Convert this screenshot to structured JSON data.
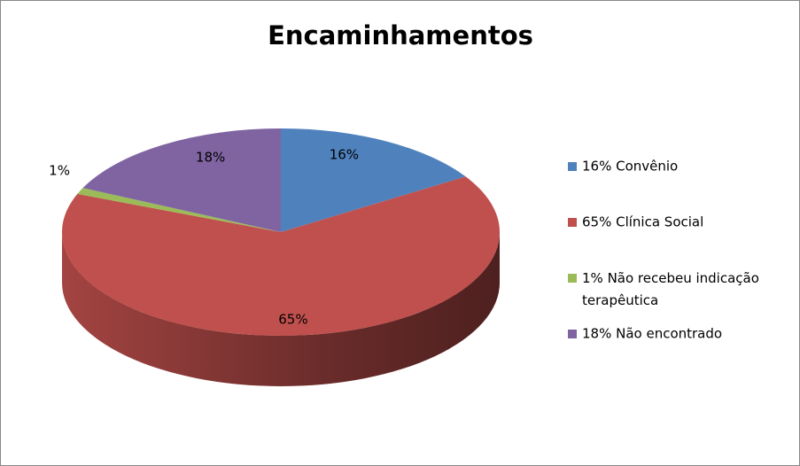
{
  "chart_data": {
    "type": "pie3d",
    "title": "Encaminhamentos",
    "categories": [
      "16% Convênio",
      "65% Clínica Social",
      "1% Não recebeu indicação terapêutica",
      "18% Não encontrado"
    ],
    "values": [
      16,
      65,
      1,
      18
    ],
    "value_labels": [
      "16%",
      "65%",
      "1%",
      "18%"
    ],
    "colors": [
      "#4f81bd",
      "#c0504d",
      "#9bbb59",
      "#8064a2"
    ],
    "legend": "right"
  }
}
